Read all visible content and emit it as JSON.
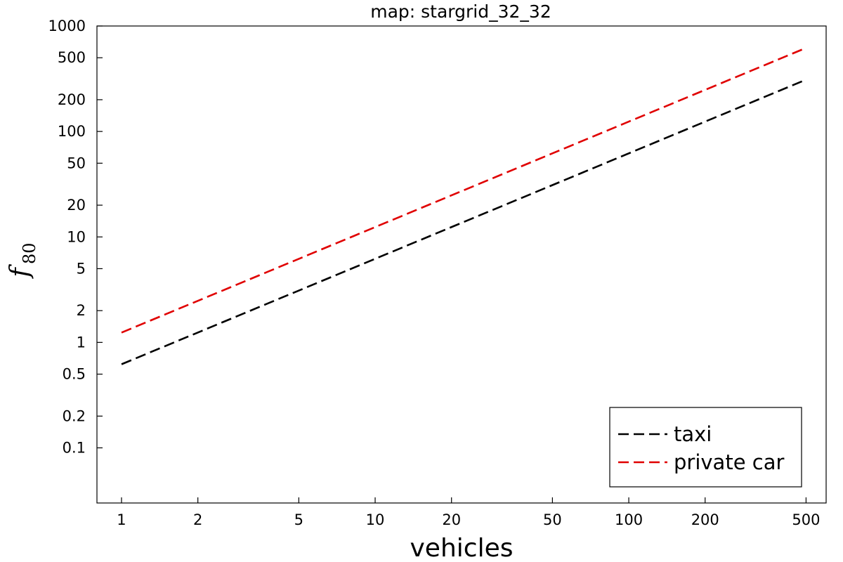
{
  "chart_data": {
    "type": "line",
    "title": "map: stargrid_32_32",
    "xlabel": "vehicles",
    "ylabel_main": "f",
    "ylabel_sub": "80",
    "xscale": "log",
    "yscale": "log",
    "xlim": [
      0.8,
      600
    ],
    "ylim": [
      0.03,
      1000
    ],
    "x_ticks": [
      1,
      2,
      5,
      10,
      20,
      50,
      100,
      200,
      500
    ],
    "x_tick_labels": [
      "1",
      "2",
      "5",
      "10",
      "20",
      "50",
      "100",
      "200",
      "500"
    ],
    "y_ticks": [
      0.1,
      0.2,
      0.5,
      1,
      2,
      5,
      10,
      20,
      50,
      100,
      200,
      500,
      1000
    ],
    "y_tick_labels": [
      "0.1",
      "0.2",
      "0.5",
      "1",
      "2",
      "5",
      "10",
      "20",
      "50",
      "100",
      "200",
      "500",
      "1000"
    ],
    "grid": false,
    "legend_position": "bottom-right",
    "series": [
      {
        "name": "taxi",
        "color": "#000000",
        "dashed": true,
        "x": [
          1,
          500
        ],
        "y": [
          0.62,
          310
        ]
      },
      {
        "name": "private car",
        "color": "#e00000",
        "dashed": true,
        "x": [
          1,
          500
        ],
        "y": [
          1.24,
          620
        ]
      }
    ]
  }
}
